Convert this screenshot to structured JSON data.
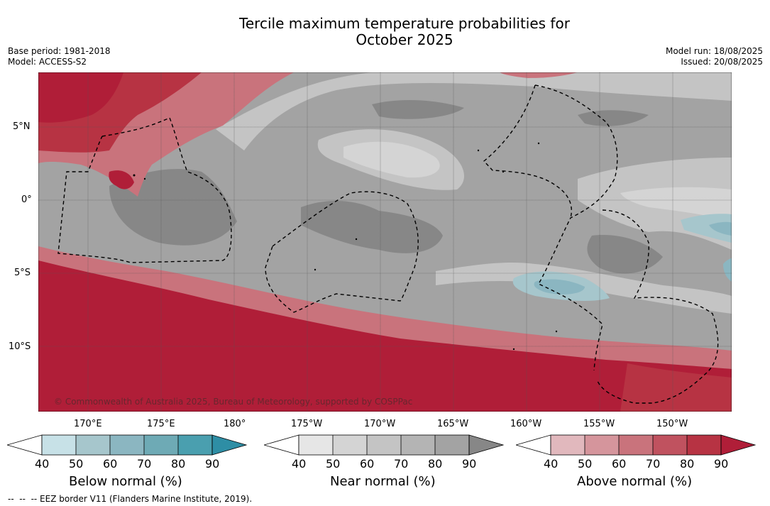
{
  "title": {
    "line1": "Tercile maximum temperature probabilities for",
    "line2": "October 2025"
  },
  "meta": {
    "base_period": "Base period: 1981-2018",
    "model": "Model: ACCESS-S2",
    "model_run": "Model run: 18/08/2025",
    "issued": "Issued: 20/08/2025"
  },
  "map": {
    "lat_labels": [
      "5°N",
      "0°",
      "5°S",
      "10°S"
    ],
    "lon_labels": [
      "170°E",
      "175°E",
      "180°",
      "175°W",
      "170°W",
      "165°W",
      "160°W",
      "155°W",
      "150°W"
    ],
    "copyright": "© Commonwealth of Australia 2025, Bureau of Meteorology, supported by COSPPac",
    "colors": {
      "above": [
        "#e1b8bd",
        "#d5959c",
        "#c9737c",
        "#c0525f",
        "#b73343",
        "#b01e38"
      ],
      "near": [
        "#e6e6e6",
        "#d4d4d4",
        "#c4c4c4",
        "#b4b4b4",
        "#a3a3a3",
        "#878787"
      ],
      "below": [
        "#c7e1e7",
        "#a6c6cc",
        "#8bb6c1",
        "#6eaab5",
        "#4a9faf",
        "#2e8ea5"
      ]
    }
  },
  "colorbars": [
    {
      "title": "Below normal (%)",
      "ticks": [
        "40",
        "50",
        "60",
        "70",
        "80",
        "90"
      ]
    },
    {
      "title": "Near normal (%)",
      "ticks": [
        "40",
        "50",
        "60",
        "70",
        "80",
        "90"
      ]
    },
    {
      "title": "Above normal (%)",
      "ticks": [
        "40",
        "50",
        "60",
        "70",
        "80",
        "90"
      ]
    }
  ],
  "footer": {
    "eez_note": "--  --  -- EEZ border V11 (Flanders Marine Institute, 2019)."
  }
}
